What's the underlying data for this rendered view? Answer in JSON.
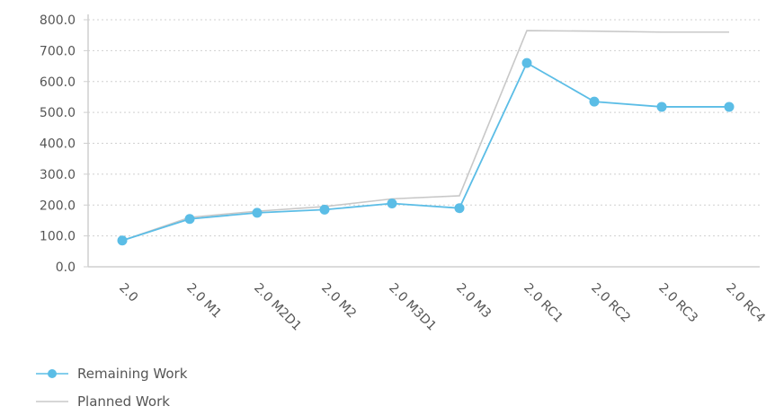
{
  "chart_data": {
    "type": "line",
    "categories": [
      "2.0",
      "2.0 M1",
      "2.0 M2D1",
      "2.0 M2",
      "2.0 M3D1",
      "2.0 M3",
      "2.0 RC1",
      "2.0 RC2",
      "2.0 RC3",
      "2.0 RC4"
    ],
    "series": [
      {
        "name": "Remaining Work",
        "values": [
          85,
          155,
          175,
          185,
          205,
          190,
          660,
          535,
          518,
          518
        ],
        "color": "#5bbde6",
        "markers": true
      },
      {
        "name": "Planned Work",
        "values": [
          85,
          160,
          180,
          195,
          220,
          230,
          765,
          763,
          760,
          760
        ],
        "color": "#c8c8c8",
        "markers": false
      }
    ],
    "yticks": [
      "0.0",
      "100.0",
      "200.0",
      "300.0",
      "400.0",
      "500.0",
      "600.0",
      "700.0",
      "800.0"
    ],
    "ylim": [
      0,
      800
    ],
    "grid": true,
    "legend_position": "bottom-left"
  }
}
